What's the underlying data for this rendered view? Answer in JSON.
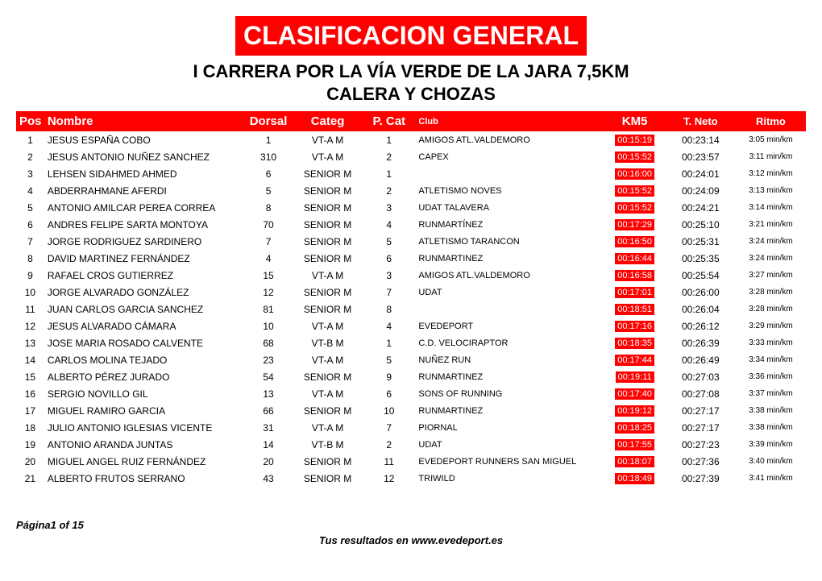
{
  "title": "CLASIFICACION GENERAL",
  "subtitle_line1": "I CARRERA POR LA VÍA VERDE DE LA JARA 7,5KM",
  "subtitle_line2": "CALERA Y CHOZAS",
  "headers": {
    "pos": "Pos",
    "nombre": "Nombre",
    "dorsal": "Dorsal",
    "categ": "Categ",
    "pcat": "P. Cat",
    "club": "Club",
    "km5": "KM5",
    "neto": "T. Neto",
    "ritmo": "Ritmo"
  },
  "rows": [
    {
      "pos": "1",
      "nombre": "JESUS ESPAÑA COBO",
      "dorsal": "1",
      "categ": "VT-A M",
      "pcat": "1",
      "club": "AMIGOS ATL.VALDEMORO",
      "km5": "00:15:19",
      "neto": "00:23:14",
      "ritmo": "3:05 min/km"
    },
    {
      "pos": "2",
      "nombre": "JESUS ANTONIO NUÑEZ SANCHEZ",
      "dorsal": "310",
      "categ": "VT-A M",
      "pcat": "2",
      "club": "CAPEX",
      "km5": "00:15:52",
      "neto": "00:23:57",
      "ritmo": "3:11 min/km"
    },
    {
      "pos": "3",
      "nombre": "LEHSEN SIDAHMED AHMED",
      "dorsal": "6",
      "categ": "SENIOR M",
      "pcat": "1",
      "club": "",
      "km5": "00:16:00",
      "neto": "00:24:01",
      "ritmo": "3:12 min/km"
    },
    {
      "pos": "4",
      "nombre": "ABDERRAHMANE AFERDI",
      "dorsal": "5",
      "categ": "SENIOR M",
      "pcat": "2",
      "club": "ATLETISMO NOVES",
      "km5": "00:15:52",
      "neto": "00:24:09",
      "ritmo": "3:13 min/km"
    },
    {
      "pos": "5",
      "nombre": "ANTONIO AMILCAR PEREA CORREA",
      "dorsal": "8",
      "categ": "SENIOR M",
      "pcat": "3",
      "club": "UDAT TALAVERA",
      "km5": "00:15:52",
      "neto": "00:24:21",
      "ritmo": "3:14 min/km"
    },
    {
      "pos": "6",
      "nombre": "ANDRES FELIPE SARTA MONTOYA",
      "dorsal": "70",
      "categ": "SENIOR M",
      "pcat": "4",
      "club": "RUNMARTÍNEZ",
      "km5": "00:17:29",
      "neto": "00:25:10",
      "ritmo": "3:21 min/km"
    },
    {
      "pos": "7",
      "nombre": "JORGE RODRIGUEZ SARDINERO",
      "dorsal": "7",
      "categ": "SENIOR M",
      "pcat": "5",
      "club": "ATLETISMO TARANCON",
      "km5": "00:16:50",
      "neto": "00:25:31",
      "ritmo": "3:24 min/km"
    },
    {
      "pos": "8",
      "nombre": "DAVID MARTINEZ FERNÁNDEZ",
      "dorsal": "4",
      "categ": "SENIOR M",
      "pcat": "6",
      "club": "RUNMARTINEZ",
      "km5": "00:16:44",
      "neto": "00:25:35",
      "ritmo": "3:24 min/km"
    },
    {
      "pos": "9",
      "nombre": "RAFAEL CROS GUTIERREZ",
      "dorsal": "15",
      "categ": "VT-A M",
      "pcat": "3",
      "club": "AMIGOS ATL.VALDEMORO",
      "km5": "00:16:58",
      "neto": "00:25:54",
      "ritmo": "3:27 min/km"
    },
    {
      "pos": "10",
      "nombre": "JORGE ALVARADO GONZÁLEZ",
      "dorsal": "12",
      "categ": "SENIOR M",
      "pcat": "7",
      "club": "UDAT",
      "km5": "00:17:01",
      "neto": "00:26:00",
      "ritmo": "3:28 min/km"
    },
    {
      "pos": "11",
      "nombre": "JUAN CARLOS GARCIA SANCHEZ",
      "dorsal": "81",
      "categ": "SENIOR M",
      "pcat": "8",
      "club": "",
      "km5": "00:18:51",
      "neto": "00:26:04",
      "ritmo": "3:28 min/km"
    },
    {
      "pos": "12",
      "nombre": "JESUS ALVARADO CÁMARA",
      "dorsal": "10",
      "categ": "VT-A M",
      "pcat": "4",
      "club": "EVEDEPORT",
      "km5": "00:17:16",
      "neto": "00:26:12",
      "ritmo": "3:29 min/km"
    },
    {
      "pos": "13",
      "nombre": "JOSE MARIA ROSADO CALVENTE",
      "dorsal": "68",
      "categ": "VT-B M",
      "pcat": "1",
      "club": "C.D. VELOCIRAPTOR",
      "km5": "00:18:35",
      "neto": "00:26:39",
      "ritmo": "3:33 min/km"
    },
    {
      "pos": "14",
      "nombre": "CARLOS MOLINA TEJADO",
      "dorsal": "23",
      "categ": "VT-A M",
      "pcat": "5",
      "club": "NUÑEZ RUN",
      "km5": "00:17:44",
      "neto": "00:26:49",
      "ritmo": "3:34 min/km"
    },
    {
      "pos": "15",
      "nombre": "ALBERTO PÉREZ JURADO",
      "dorsal": "54",
      "categ": "SENIOR M",
      "pcat": "9",
      "club": "RUNMARTINEZ",
      "km5": "00:19:11",
      "neto": "00:27:03",
      "ritmo": "3:36 min/km"
    },
    {
      "pos": "16",
      "nombre": "SERGIO NOVILLO GIL",
      "dorsal": "13",
      "categ": "VT-A M",
      "pcat": "6",
      "club": "SONS OF RUNNING",
      "km5": "00:17:40",
      "neto": "00:27:08",
      "ritmo": "3:37 min/km"
    },
    {
      "pos": "17",
      "nombre": "MIGUEL RAMIRO GARCIA",
      "dorsal": "66",
      "categ": "SENIOR M",
      "pcat": "10",
      "club": "RUNMARTINEZ",
      "km5": "00:19:12",
      "neto": "00:27:17",
      "ritmo": "3:38 min/km"
    },
    {
      "pos": "18",
      "nombre": "JULIO ANTONIO IGLESIAS VICENTE",
      "dorsal": "31",
      "categ": "VT-A M",
      "pcat": "7",
      "club": "PIORNAL",
      "km5": "00:18:25",
      "neto": "00:27:17",
      "ritmo": "3:38 min/km"
    },
    {
      "pos": "19",
      "nombre": "ANTONIO ARANDA JUNTAS",
      "dorsal": "14",
      "categ": "VT-B M",
      "pcat": "2",
      "club": "UDAT",
      "km5": "00:17:55",
      "neto": "00:27:23",
      "ritmo": "3:39 min/km"
    },
    {
      "pos": "20",
      "nombre": "MIGUEL ANGEL RUIZ FERNÁNDEZ",
      "dorsal": "20",
      "categ": "SENIOR M",
      "pcat": "11",
      "club": "EVEDEPORT RUNNERS SAN MIGUEL",
      "km5": "00:18:07",
      "neto": "00:27:36",
      "ritmo": "3:40 min/km"
    },
    {
      "pos": "21",
      "nombre": "ALBERTO FRUTOS SERRANO",
      "dorsal": "43",
      "categ": "SENIOR M",
      "pcat": "12",
      "club": "TRIWILD",
      "km5": "00:18:49",
      "neto": "00:27:39",
      "ritmo": "3:41 min/km"
    }
  ],
  "footer": {
    "page": "Página1 of 15",
    "credit": "Tus resultados en www.evedeport.es"
  },
  "colors": {
    "accent": "#ff0000",
    "text_on_accent": "#ffffff",
    "body_text": "#000000",
    "background": "#ffffff"
  }
}
